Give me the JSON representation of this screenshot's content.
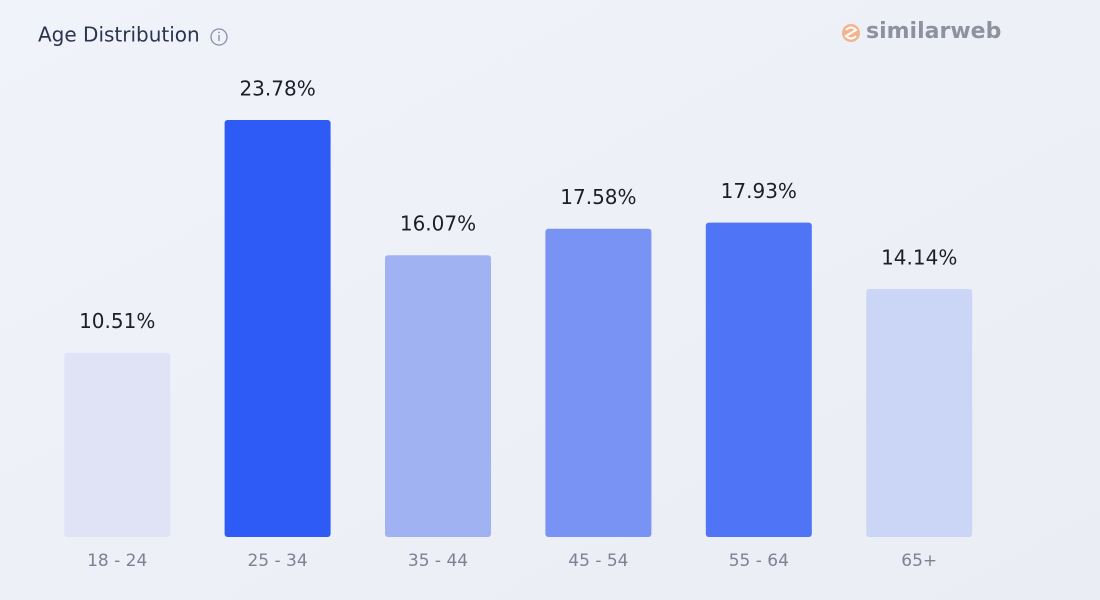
{
  "brand": "similarweb",
  "chart_data": {
    "type": "bar",
    "title": "Age Distribution",
    "categories": [
      "18 - 24",
      "25 - 34",
      "35 - 44",
      "45 - 54",
      "55 - 64",
      "65+"
    ],
    "values": [
      10.51,
      23.78,
      16.07,
      17.58,
      17.93,
      14.14
    ],
    "value_labels": [
      "10.51%",
      "23.78%",
      "16.07%",
      "17.58%",
      "17.93%",
      "14.14%"
    ],
    "colors": [
      "#dfe3f5",
      "#2e5bf6",
      "#a1b2f3",
      "#7893f3",
      "#4f74f5",
      "#cbd5f5"
    ]
  }
}
